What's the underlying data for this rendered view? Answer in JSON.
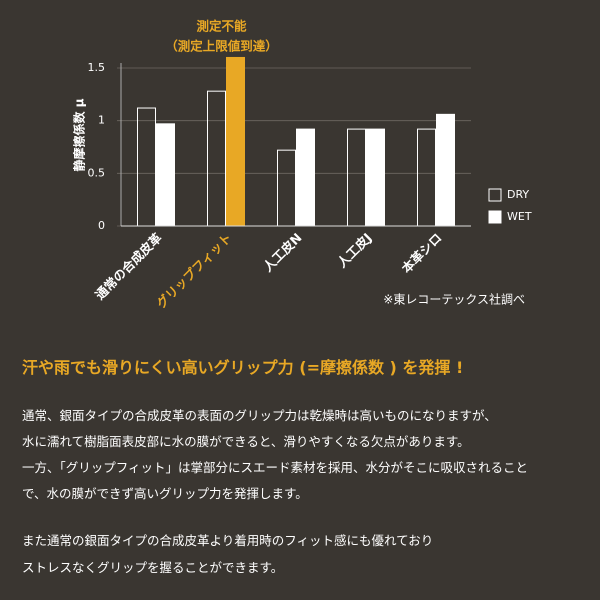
{
  "chart_data": {
    "type": "bar",
    "y_label": "静摩擦係数 μ",
    "categories": [
      "通常の合成皮革",
      "グリップフィット",
      "人工皮N",
      "人工皮J",
      "本革シロ"
    ],
    "series": [
      {
        "name": "DRY",
        "color": "#ffffff",
        "filled": false,
        "values": [
          1.12,
          1.28,
          0.72,
          0.92,
          0.92
        ]
      },
      {
        "name": "WET",
        "color": "#ffffff",
        "filled": true,
        "values": [
          0.97,
          1.6,
          0.92,
          0.92,
          1.06
        ]
      }
    ],
    "highlight": {
      "category": 1,
      "series": 1,
      "color": "#e8a825"
    },
    "annotation": [
      "測定不能",
      "（測定上限値到達）"
    ],
    "note": "※東レコーテックス社調べ",
    "ylim": [
      0,
      1.5
    ],
    "yticks": [
      0,
      0.5,
      1,
      1.5
    ],
    "legend": "right"
  },
  "text": {
    "heading": "汗や雨でも滑りにくい高いグリップ力 (=摩擦係数 ) を発揮 !",
    "paragraphs": [
      [
        "通常、銀面タイプの合成皮革の表面のグリップ力は乾燥時は高いものになりますが、",
        "水に濡れて樹脂面表皮部に水の膜ができると、滑りやすくなる欠点があります。",
        "一方、「グリップフィット」は掌部分にスエード素材を採用、水分がそこに吸収されること",
        "で、水の膜ができず高いグリップ力を発揮します。"
      ],
      [
        "また通常の銀面タイプの合成皮革より着用時のフィット感にも優れており",
        "ストレスなくグリップを握ることができます。"
      ]
    ]
  }
}
